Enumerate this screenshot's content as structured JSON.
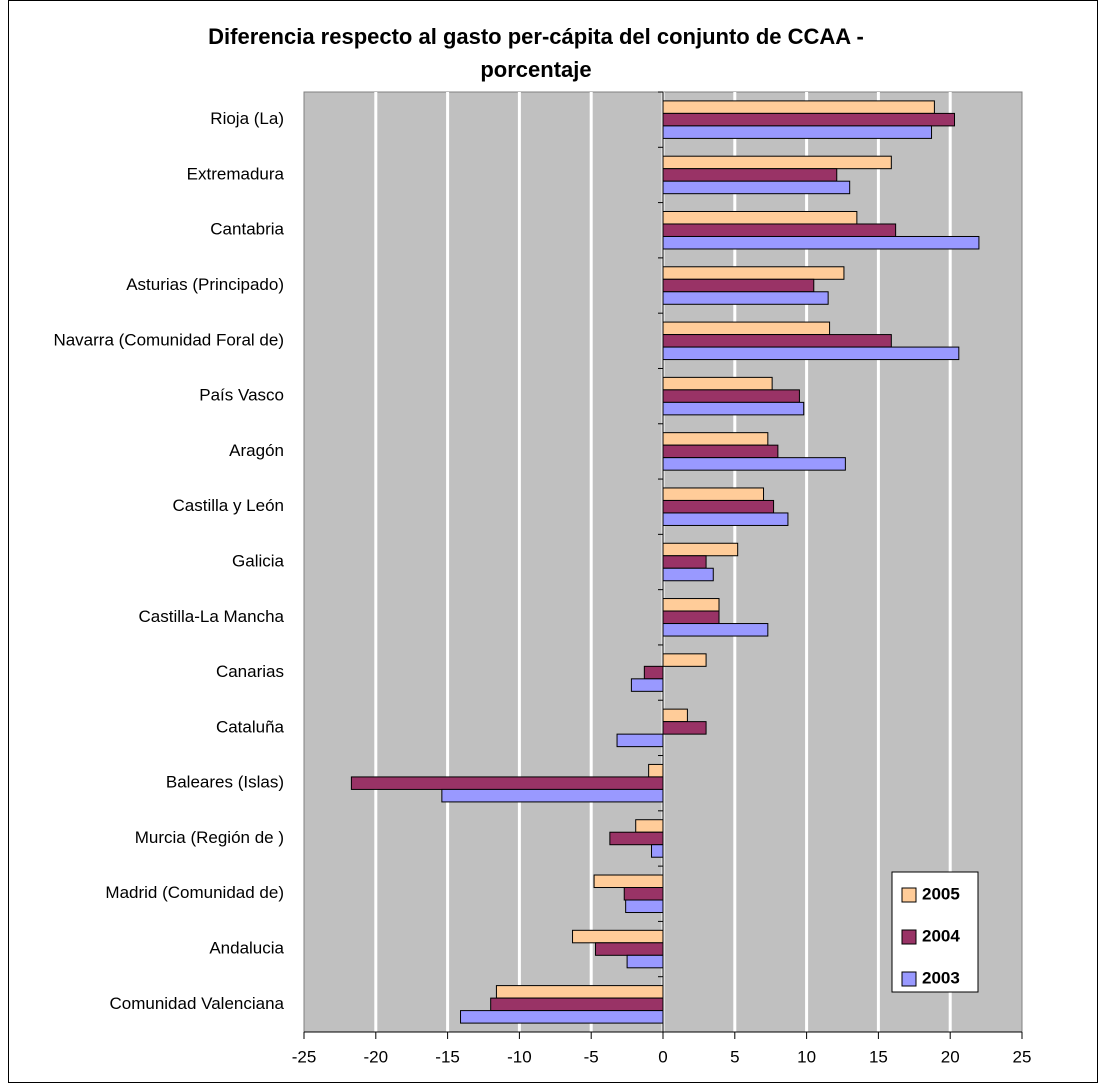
{
  "chart_data": {
    "type": "bar",
    "orientation": "horizontal",
    "title": "Diferencia respecto al gasto per-cápita del conjunto de CCAA - porcentaje",
    "categories": [
      "Rioja (La)",
      "Extremadura",
      "Cantabria",
      "Asturias (Principado)",
      "Navarra (Comunidad Foral de)",
      "País Vasco",
      "Aragón",
      "Castilla y León",
      "Galicia",
      "Castilla-La Mancha",
      "Canarias",
      "Cataluña",
      "Baleares (Islas)",
      "Murcia (Región de )",
      "Madrid (Comunidad de)",
      "Andalucia",
      "Comunidad Valenciana"
    ],
    "series": [
      {
        "name": "2005",
        "color": "#ffcc99",
        "values": [
          18.9,
          15.9,
          13.5,
          12.6,
          11.6,
          7.6,
          7.3,
          7.0,
          5.2,
          3.9,
          3.0,
          1.7,
          -1.0,
          -1.9,
          -4.8,
          -6.3,
          -11.6
        ]
      },
      {
        "name": "2004",
        "color": "#993366",
        "values": [
          20.3,
          12.1,
          16.2,
          10.5,
          15.9,
          9.5,
          8.0,
          7.7,
          3.0,
          3.9,
          -1.3,
          3.0,
          -21.7,
          -3.7,
          -2.7,
          -4.7,
          -12.0
        ]
      },
      {
        "name": "2003",
        "color": "#9999ff",
        "values": [
          18.7,
          13.0,
          22.0,
          11.5,
          20.6,
          9.8,
          12.7,
          8.7,
          3.5,
          7.3,
          -2.2,
          -3.2,
          -15.4,
          -0.8,
          -2.6,
          -2.5,
          -14.1
        ]
      }
    ],
    "xlim": [
      -25,
      25
    ],
    "xticks": [
      -25,
      -20,
      -15,
      -10,
      -5,
      0,
      5,
      10,
      15,
      20,
      25
    ],
    "grid": true,
    "legend": "lower right",
    "background": "#c0c0c0"
  }
}
